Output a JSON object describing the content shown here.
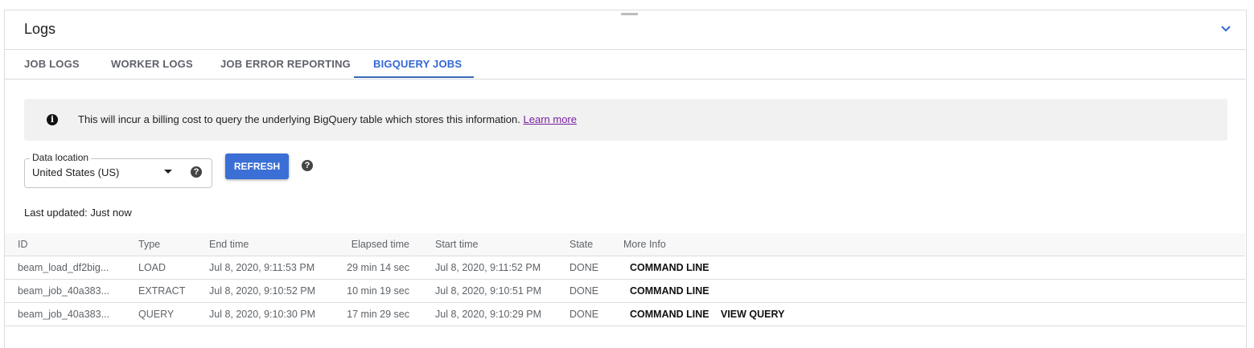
{
  "panel": {
    "title": "Logs",
    "collapse_icon": "chevron-down-icon",
    "accent": "#3367d6"
  },
  "tabs": [
    {
      "label": "JOB LOGS"
    },
    {
      "label": "WORKER LOGS"
    },
    {
      "label": "JOB ERROR REPORTING"
    },
    {
      "label": "BIGQUERY JOBS",
      "active": true
    }
  ],
  "banner": {
    "icon": "info-icon",
    "text": "This will incur a billing cost to query the underlying BigQuery table which stores this information.",
    "link": "Learn more"
  },
  "location": {
    "label": "Data location",
    "value": "United States (US)"
  },
  "refresh_label": "REFRESH",
  "last_updated": "Last updated: Just now",
  "table": {
    "headers": [
      "ID",
      "Type",
      "End time",
      "Elapsed time",
      "Start time",
      "State",
      "More Info"
    ],
    "rows": [
      {
        "id": "beam_load_df2big...",
        "type": "LOAD",
        "end": "Jul 8, 2020, 9:11:53 PM",
        "elapsed": "29 min 14 sec",
        "start": "Jul 8, 2020, 9:11:52 PM",
        "state": "DONE",
        "actions": [
          "COMMAND LINE"
        ]
      },
      {
        "id": "beam_job_40a383...",
        "type": "EXTRACT",
        "end": "Jul 8, 2020, 9:10:52 PM",
        "elapsed": "10 min 19 sec",
        "start": "Jul 8, 2020, 9:10:51 PM",
        "state": "DONE",
        "actions": [
          "COMMAND LINE"
        ]
      },
      {
        "id": "beam_job_40a383...",
        "type": "QUERY",
        "end": "Jul 8, 2020, 9:10:30 PM",
        "elapsed": "17 min 29 sec",
        "start": "Jul 8, 2020, 9:10:29 PM",
        "state": "DONE",
        "actions": [
          "COMMAND LINE",
          "VIEW QUERY"
        ]
      }
    ]
  }
}
